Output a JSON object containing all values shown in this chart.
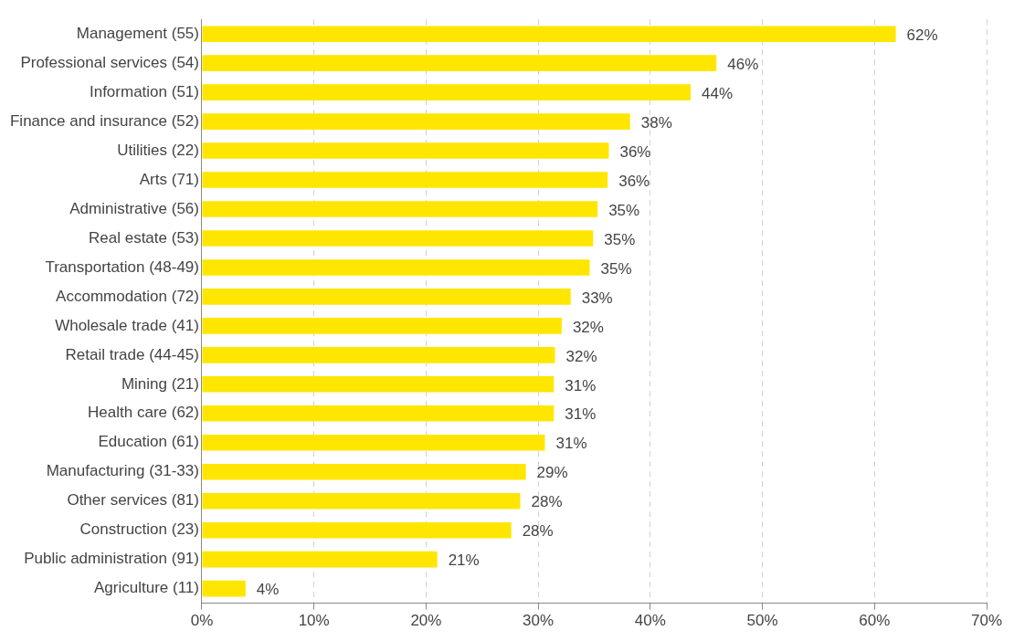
{
  "chart_data": {
    "type": "bar",
    "orientation": "horizontal",
    "categories": [
      "Management (55)",
      "Professional services (54)",
      "Information (51)",
      "Finance and insurance (52)",
      "Utilities (22)",
      "Arts (71)",
      "Administrative (56)",
      "Real estate (53)",
      "Transportation (48-49)",
      "Accommodation (72)",
      "Wholesale trade (41)",
      "Retail trade (44-45)",
      "Mining (21)",
      "Health care (62)",
      "Education (61)",
      "Manufacturing (31-33)",
      "Other services (81)",
      "Construction (23)",
      "Public administration (91)",
      "Agriculture (11)"
    ],
    "values": [
      61.9,
      45.9,
      43.6,
      38.2,
      36.3,
      36.2,
      35.3,
      34.9,
      34.6,
      32.9,
      32.1,
      31.5,
      31.4,
      31.4,
      30.6,
      28.9,
      28.4,
      27.6,
      21.0,
      3.9
    ],
    "value_labels": [
      "62%",
      "46%",
      "44%",
      "38%",
      "36%",
      "36%",
      "35%",
      "35%",
      "35%",
      "33%",
      "32%",
      "32%",
      "31%",
      "31%",
      "31%",
      "29%",
      "28%",
      "28%",
      "21%",
      "4%"
    ],
    "color": "#ffe600",
    "xlim": [
      0,
      70
    ],
    "xticks": [
      {
        "value": 0,
        "label": "0%"
      },
      {
        "value": 10,
        "label": "10%"
      },
      {
        "value": 20,
        "label": "20%"
      },
      {
        "value": 30,
        "label": "30%"
      },
      {
        "value": 40,
        "label": "40%"
      },
      {
        "value": 50,
        "label": "50%"
      },
      {
        "value": 60,
        "label": "60%"
      },
      {
        "value": 70,
        "label": "70%"
      }
    ],
    "grid": "x",
    "legend": false
  }
}
